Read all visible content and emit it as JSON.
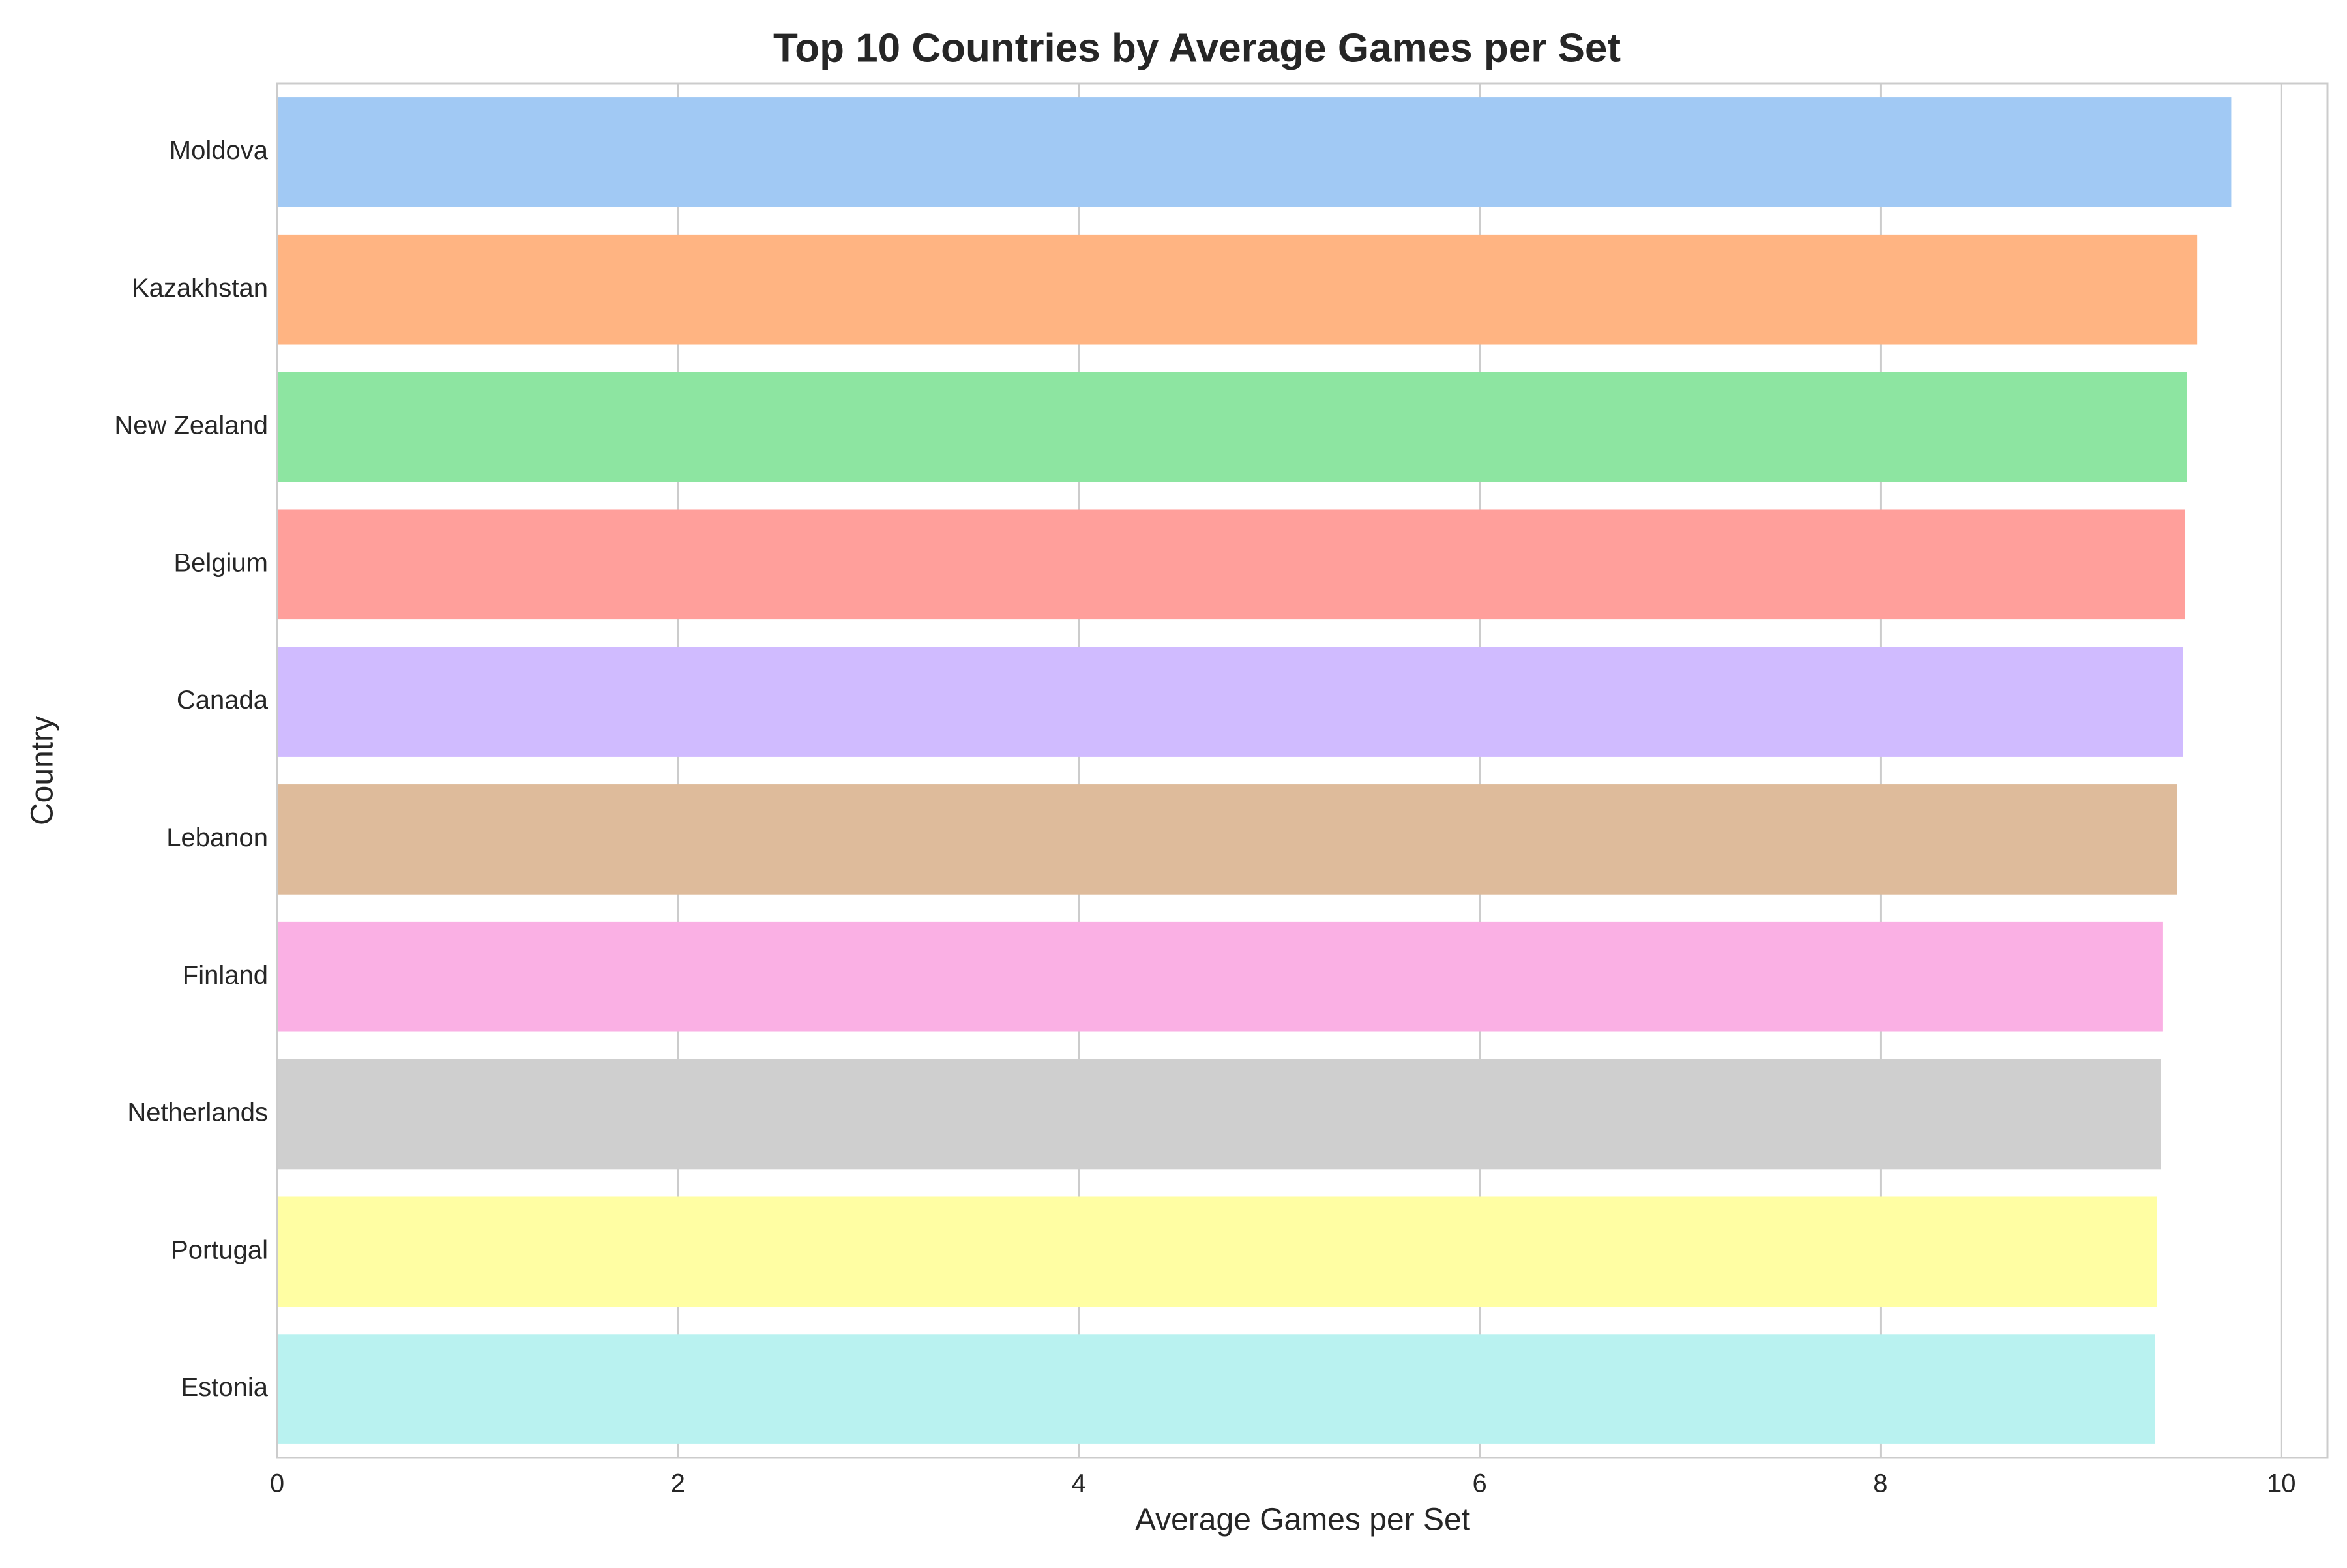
{
  "chart_data": {
    "type": "bar",
    "orientation": "horizontal",
    "title": "Top 10 Countries by Average Games per Set",
    "xlabel": "Average Games per Set",
    "ylabel": "Country",
    "xlim": [
      0,
      10.23
    ],
    "xticks": [
      0,
      2,
      4,
      6,
      8,
      10
    ],
    "grid": true,
    "legend": "none",
    "categories": [
      "Moldova",
      "Kazakhstan",
      "New Zealand",
      "Belgium",
      "Canada",
      "Lebanon",
      "Finland",
      "Netherlands",
      "Portugal",
      "Estonia"
    ],
    "values": [
      9.75,
      9.58,
      9.53,
      9.52,
      9.51,
      9.48,
      9.41,
      9.4,
      9.38,
      9.37
    ],
    "colors": [
      "#a1c9f4",
      "#ffb482",
      "#8de5a1",
      "#ff9f9b",
      "#d0bbff",
      "#debb9b",
      "#fab0e4",
      "#cfcfcf",
      "#fffea3",
      "#b9f2f0"
    ]
  }
}
